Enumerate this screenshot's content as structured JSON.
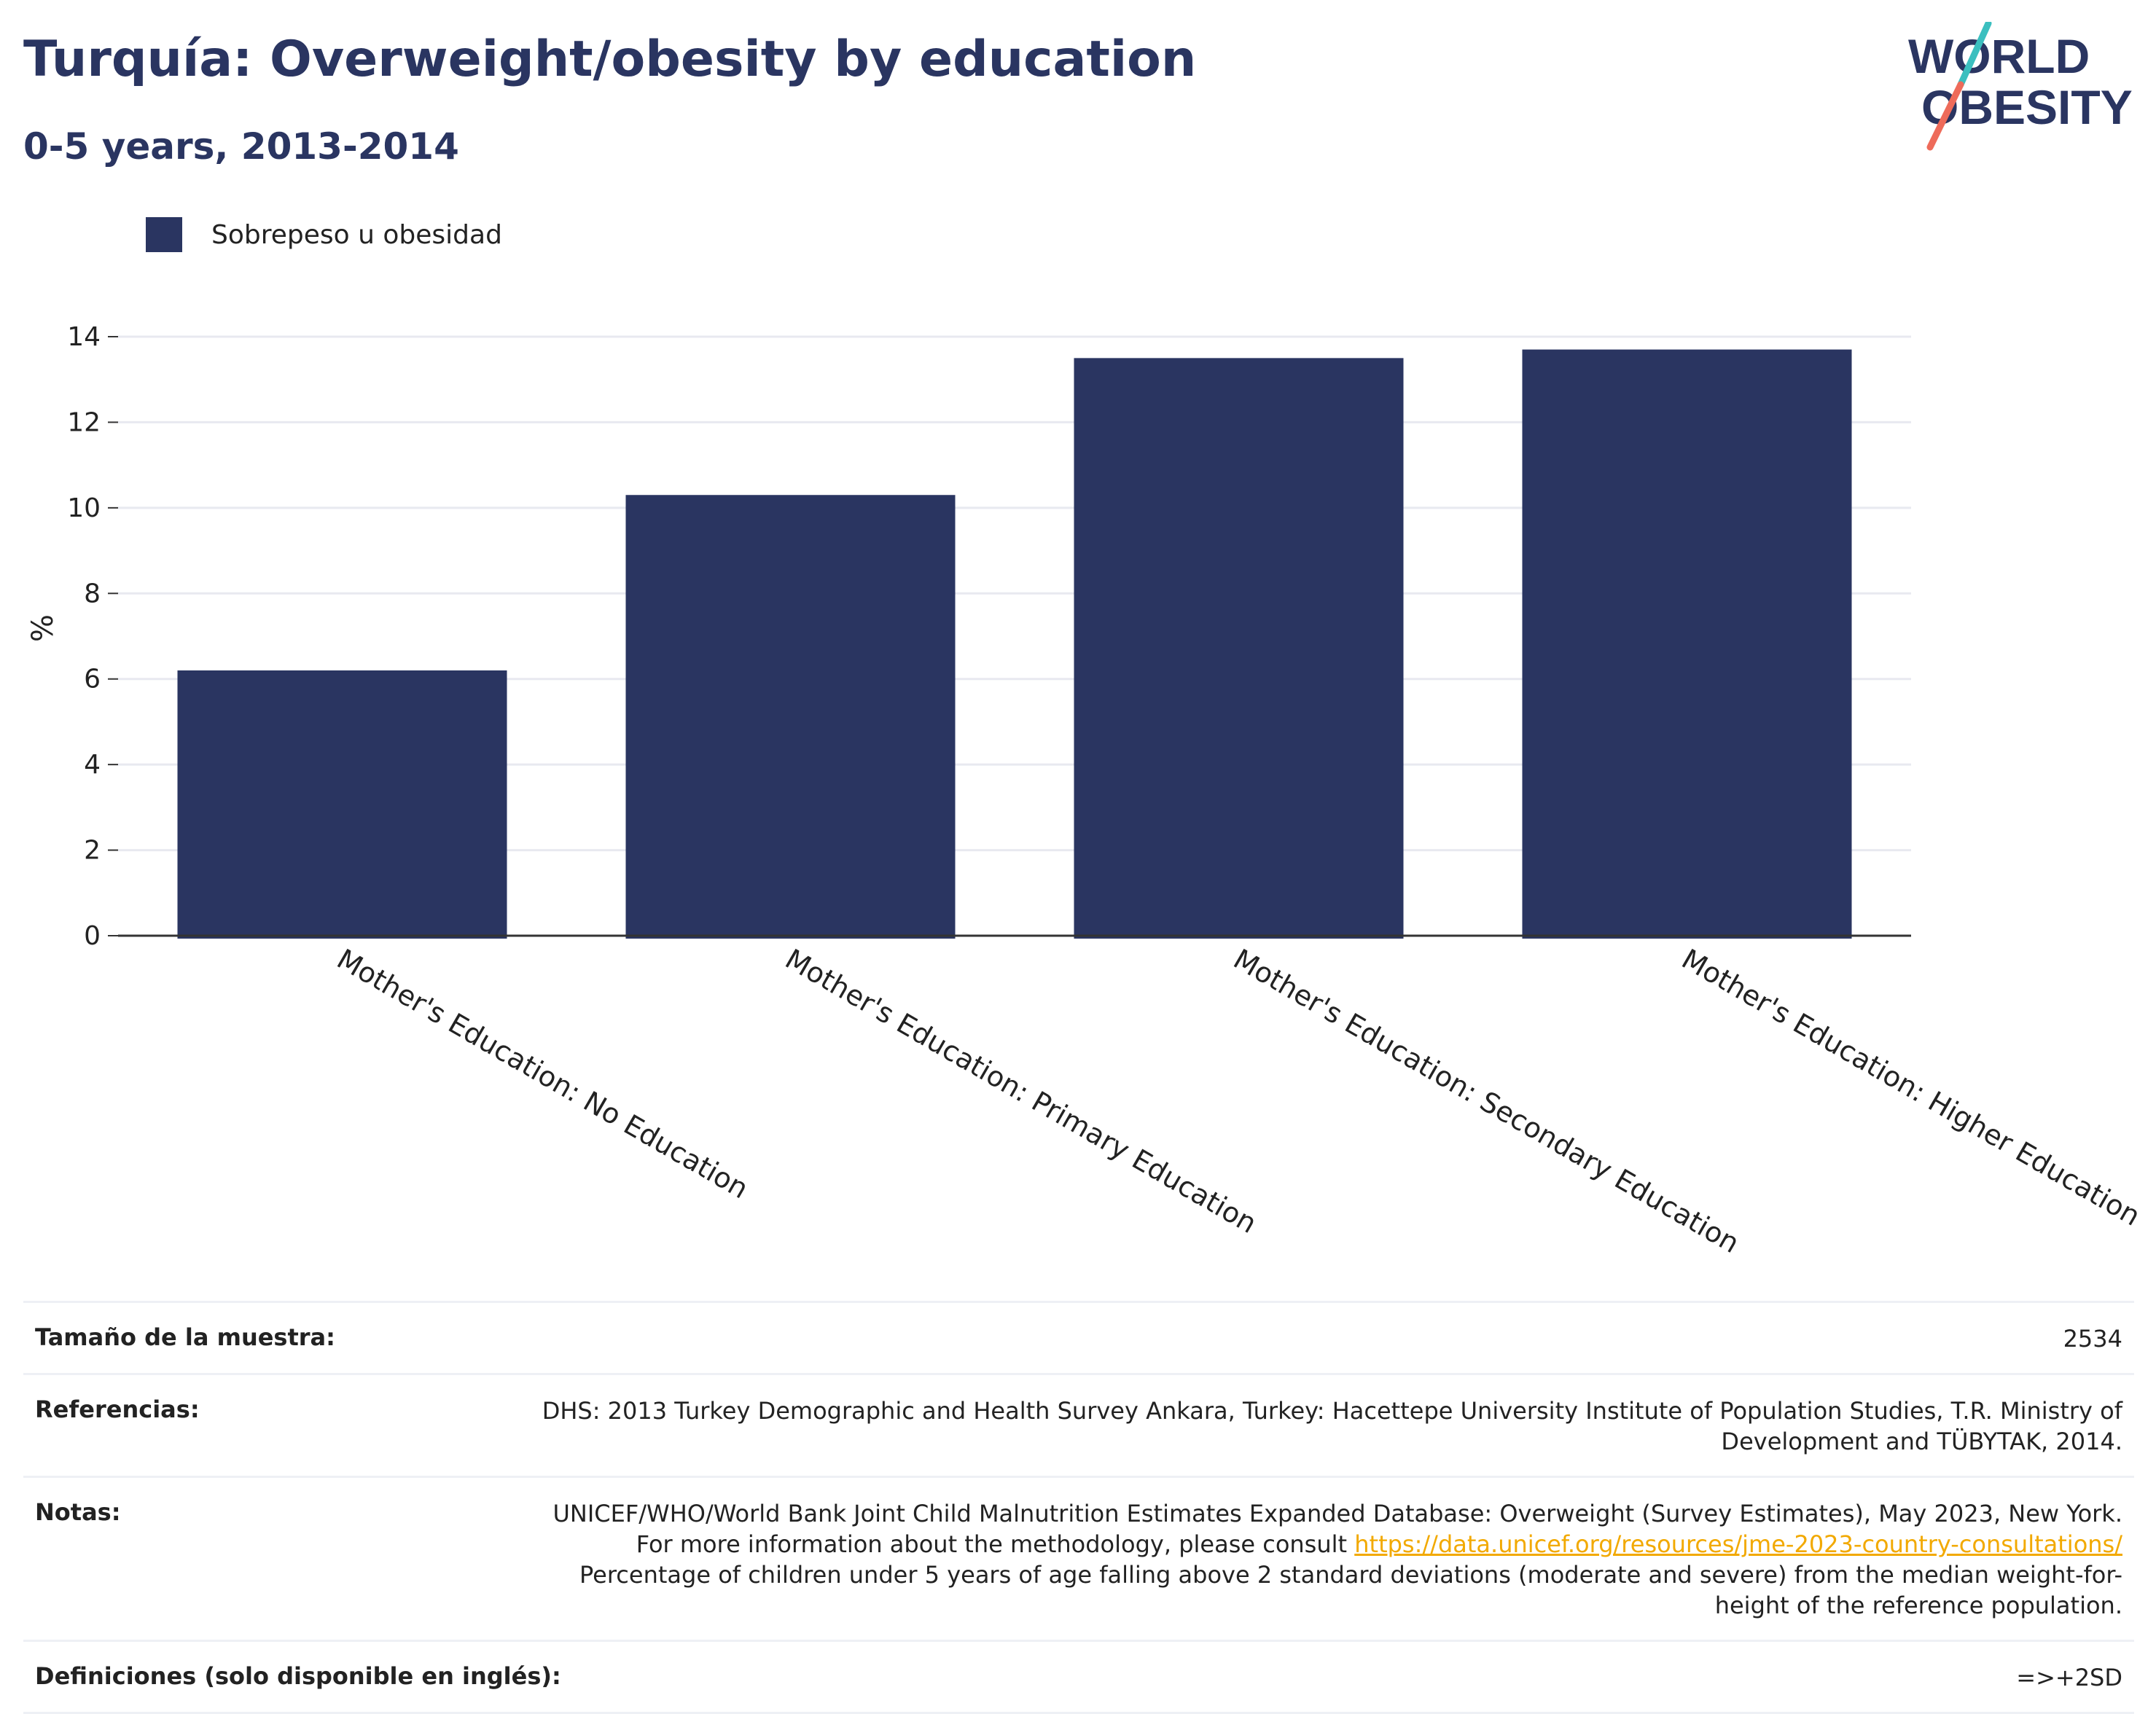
{
  "title": "Turquía: Overweight/obesity by education",
  "subtitle": "0-5 years, 2013-2014",
  "logo": {
    "line1": "WORLD",
    "line2": "OBESITY",
    "accent_teal": "#3bbfbf",
    "accent_coral": "#ee6b5a"
  },
  "colors": {
    "bar": "#2a3561",
    "grid": "#e8e9f0",
    "axis": "#333333",
    "text": "#222222"
  },
  "chart_data": {
    "type": "bar",
    "categories": [
      "Mother's Education: No Education",
      "Mother's Education: Primary Education",
      "Mother's Education: Secondary Education",
      "Mother's Education: Higher Education"
    ],
    "series": [
      {
        "name": "Sobrepeso u obesidad",
        "values": [
          6.2,
          10.3,
          13.5,
          13.7
        ]
      }
    ],
    "xlabel": "",
    "ylabel": "%",
    "ylim": [
      0,
      14
    ],
    "yticks": [
      0,
      2,
      4,
      6,
      8,
      10,
      12,
      14
    ],
    "grid": true,
    "legend_position": "top-left"
  },
  "meta": {
    "sample_label": "Tamaño de la muestra:",
    "sample_value": "2534",
    "refs_label": "Referencias:",
    "refs_value": "DHS: 2013 Turkey Demographic and Health Survey Ankara, Turkey: Hacettepe University Institute of Population Studies, T.R. Ministry of Development and TÜBYTAK, 2014.",
    "notes_label": "Notas:",
    "notes_value_1": "UNICEF/WHO/World Bank Joint Child Malnutrition Estimates Expanded Database: Overweight (Survey Estimates), May 2023, New York. For more information about the methodology, please consult ",
    "notes_link": "https://data.unicef.org/resources/jme-2023-country-consultations/",
    "notes_value_2": " Percentage of children under 5 years of age falling above 2 standard deviations (moderate and severe) from the median weight-for-height of the reference population.",
    "defs_label": "Definiciones (solo disponible en inglés):",
    "defs_value": "=>+2SD"
  }
}
